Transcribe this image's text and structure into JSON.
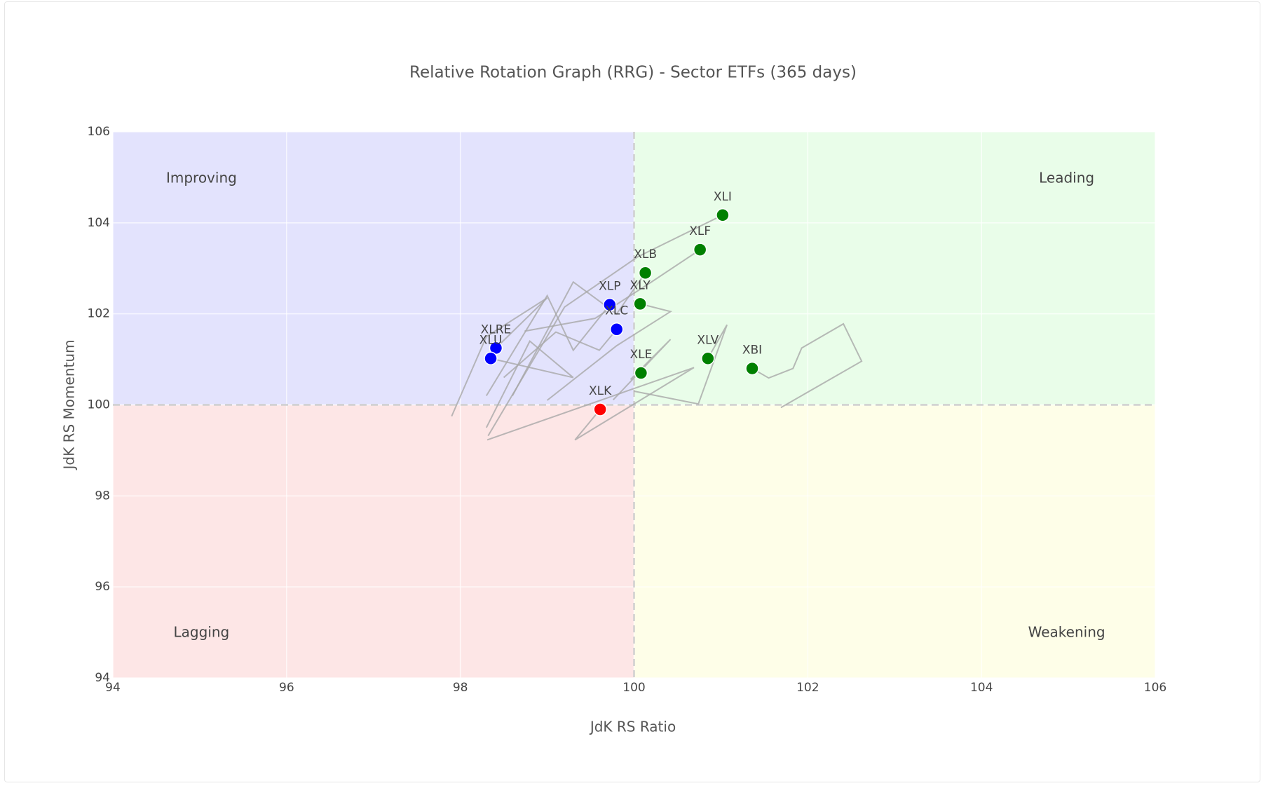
{
  "chart_data": {
    "type": "scatter",
    "title": "Relative Rotation Graph (RRG) - Sector ETFs (365 days)",
    "x_label": "JdK RS Ratio",
    "y_label": "JdK RS Momentum",
    "xlim": [
      94,
      106
    ],
    "ylim": [
      94,
      106
    ],
    "xticks": [
      94,
      96,
      98,
      100,
      102,
      104,
      106
    ],
    "yticks": [
      94,
      96,
      98,
      100,
      102,
      104,
      106
    ],
    "grid": true,
    "center": [
      100,
      100
    ],
    "trail_color": "#a8a8a8",
    "quadrants": [
      {
        "label": "Improving",
        "color": "#0000ff",
        "fill": "#e3e3fd",
        "corner": "top-left"
      },
      {
        "label": "Leading",
        "color": "#008000",
        "fill": "#e9fde9",
        "corner": "top-right"
      },
      {
        "label": "Lagging",
        "color": "#ff0000",
        "fill": "#fde6e6",
        "corner": "bottom-left"
      },
      {
        "label": "Weakening",
        "color": "#ff8c00",
        "fill": "#fefee8",
        "corner": "bottom-right"
      }
    ],
    "series": [
      {
        "name": "XLI",
        "color": "#008000",
        "x": [
          98.32,
          99.2,
          100.04,
          101.02
        ],
        "y": [
          99.32,
          102.15,
          103.25,
          104.17
        ]
      },
      {
        "name": "XLF",
        "color": "#008000",
        "x": [
          98.74,
          99.55,
          100.2,
          100.76
        ],
        "y": [
          101.62,
          101.9,
          102.7,
          103.41
        ]
      },
      {
        "name": "XLB",
        "color": "#008000",
        "x": [
          98.6,
          99.3,
          99.8,
          100.13
        ],
        "y": [
          100.2,
          102.7,
          102.0,
          102.9
        ]
      },
      {
        "name": "XLY",
        "color": "#008000",
        "x": [
          99.0,
          99.8,
          100.42,
          100.07
        ],
        "y": [
          100.1,
          101.3,
          102.05,
          102.22
        ]
      },
      {
        "name": "XLP",
        "color": "#0000ff",
        "x": [
          98.3,
          99.0,
          99.3,
          99.72
        ],
        "y": [
          100.2,
          102.4,
          101.2,
          102.2
        ]
      },
      {
        "name": "XLC",
        "color": "#0000ff",
        "x": [
          98.5,
          99.1,
          99.6,
          99.8
        ],
        "y": [
          100.6,
          101.6,
          101.2,
          101.66
        ]
      },
      {
        "name": "XLRE",
        "color": "#0000ff",
        "x": [
          97.9,
          98.3,
          99.0,
          98.41
        ],
        "y": [
          99.75,
          101.5,
          102.35,
          101.25
        ]
      },
      {
        "name": "XLU",
        "color": "#0000ff",
        "x": [
          98.3,
          98.8,
          99.3,
          98.35
        ],
        "y": [
          99.5,
          101.4,
          100.6,
          101.02
        ]
      },
      {
        "name": "XLE",
        "color": "#008000",
        "x": [
          99.76,
          100.42,
          99.96,
          100.08
        ],
        "y": [
          100.11,
          101.44,
          100.56,
          100.7
        ]
      },
      {
        "name": "XLV",
        "color": "#008000",
        "x": [
          100.0,
          100.74,
          101.07,
          100.85
        ],
        "y": [
          100.3,
          100.02,
          101.76,
          101.02
        ]
      },
      {
        "name": "XBI",
        "color": "#008000",
        "x": [
          101.69,
          102.62,
          102.41,
          101.93,
          101.83,
          101.55,
          101.36
        ],
        "y": [
          99.94,
          100.96,
          101.78,
          101.25,
          100.8,
          100.59,
          100.8
        ]
      },
      {
        "name": "XLK",
        "color": "#ff0000",
        "x": [
          98.31,
          100.69,
          99.32,
          99.61
        ],
        "y": [
          99.23,
          100.82,
          99.23,
          99.9
        ]
      }
    ]
  }
}
